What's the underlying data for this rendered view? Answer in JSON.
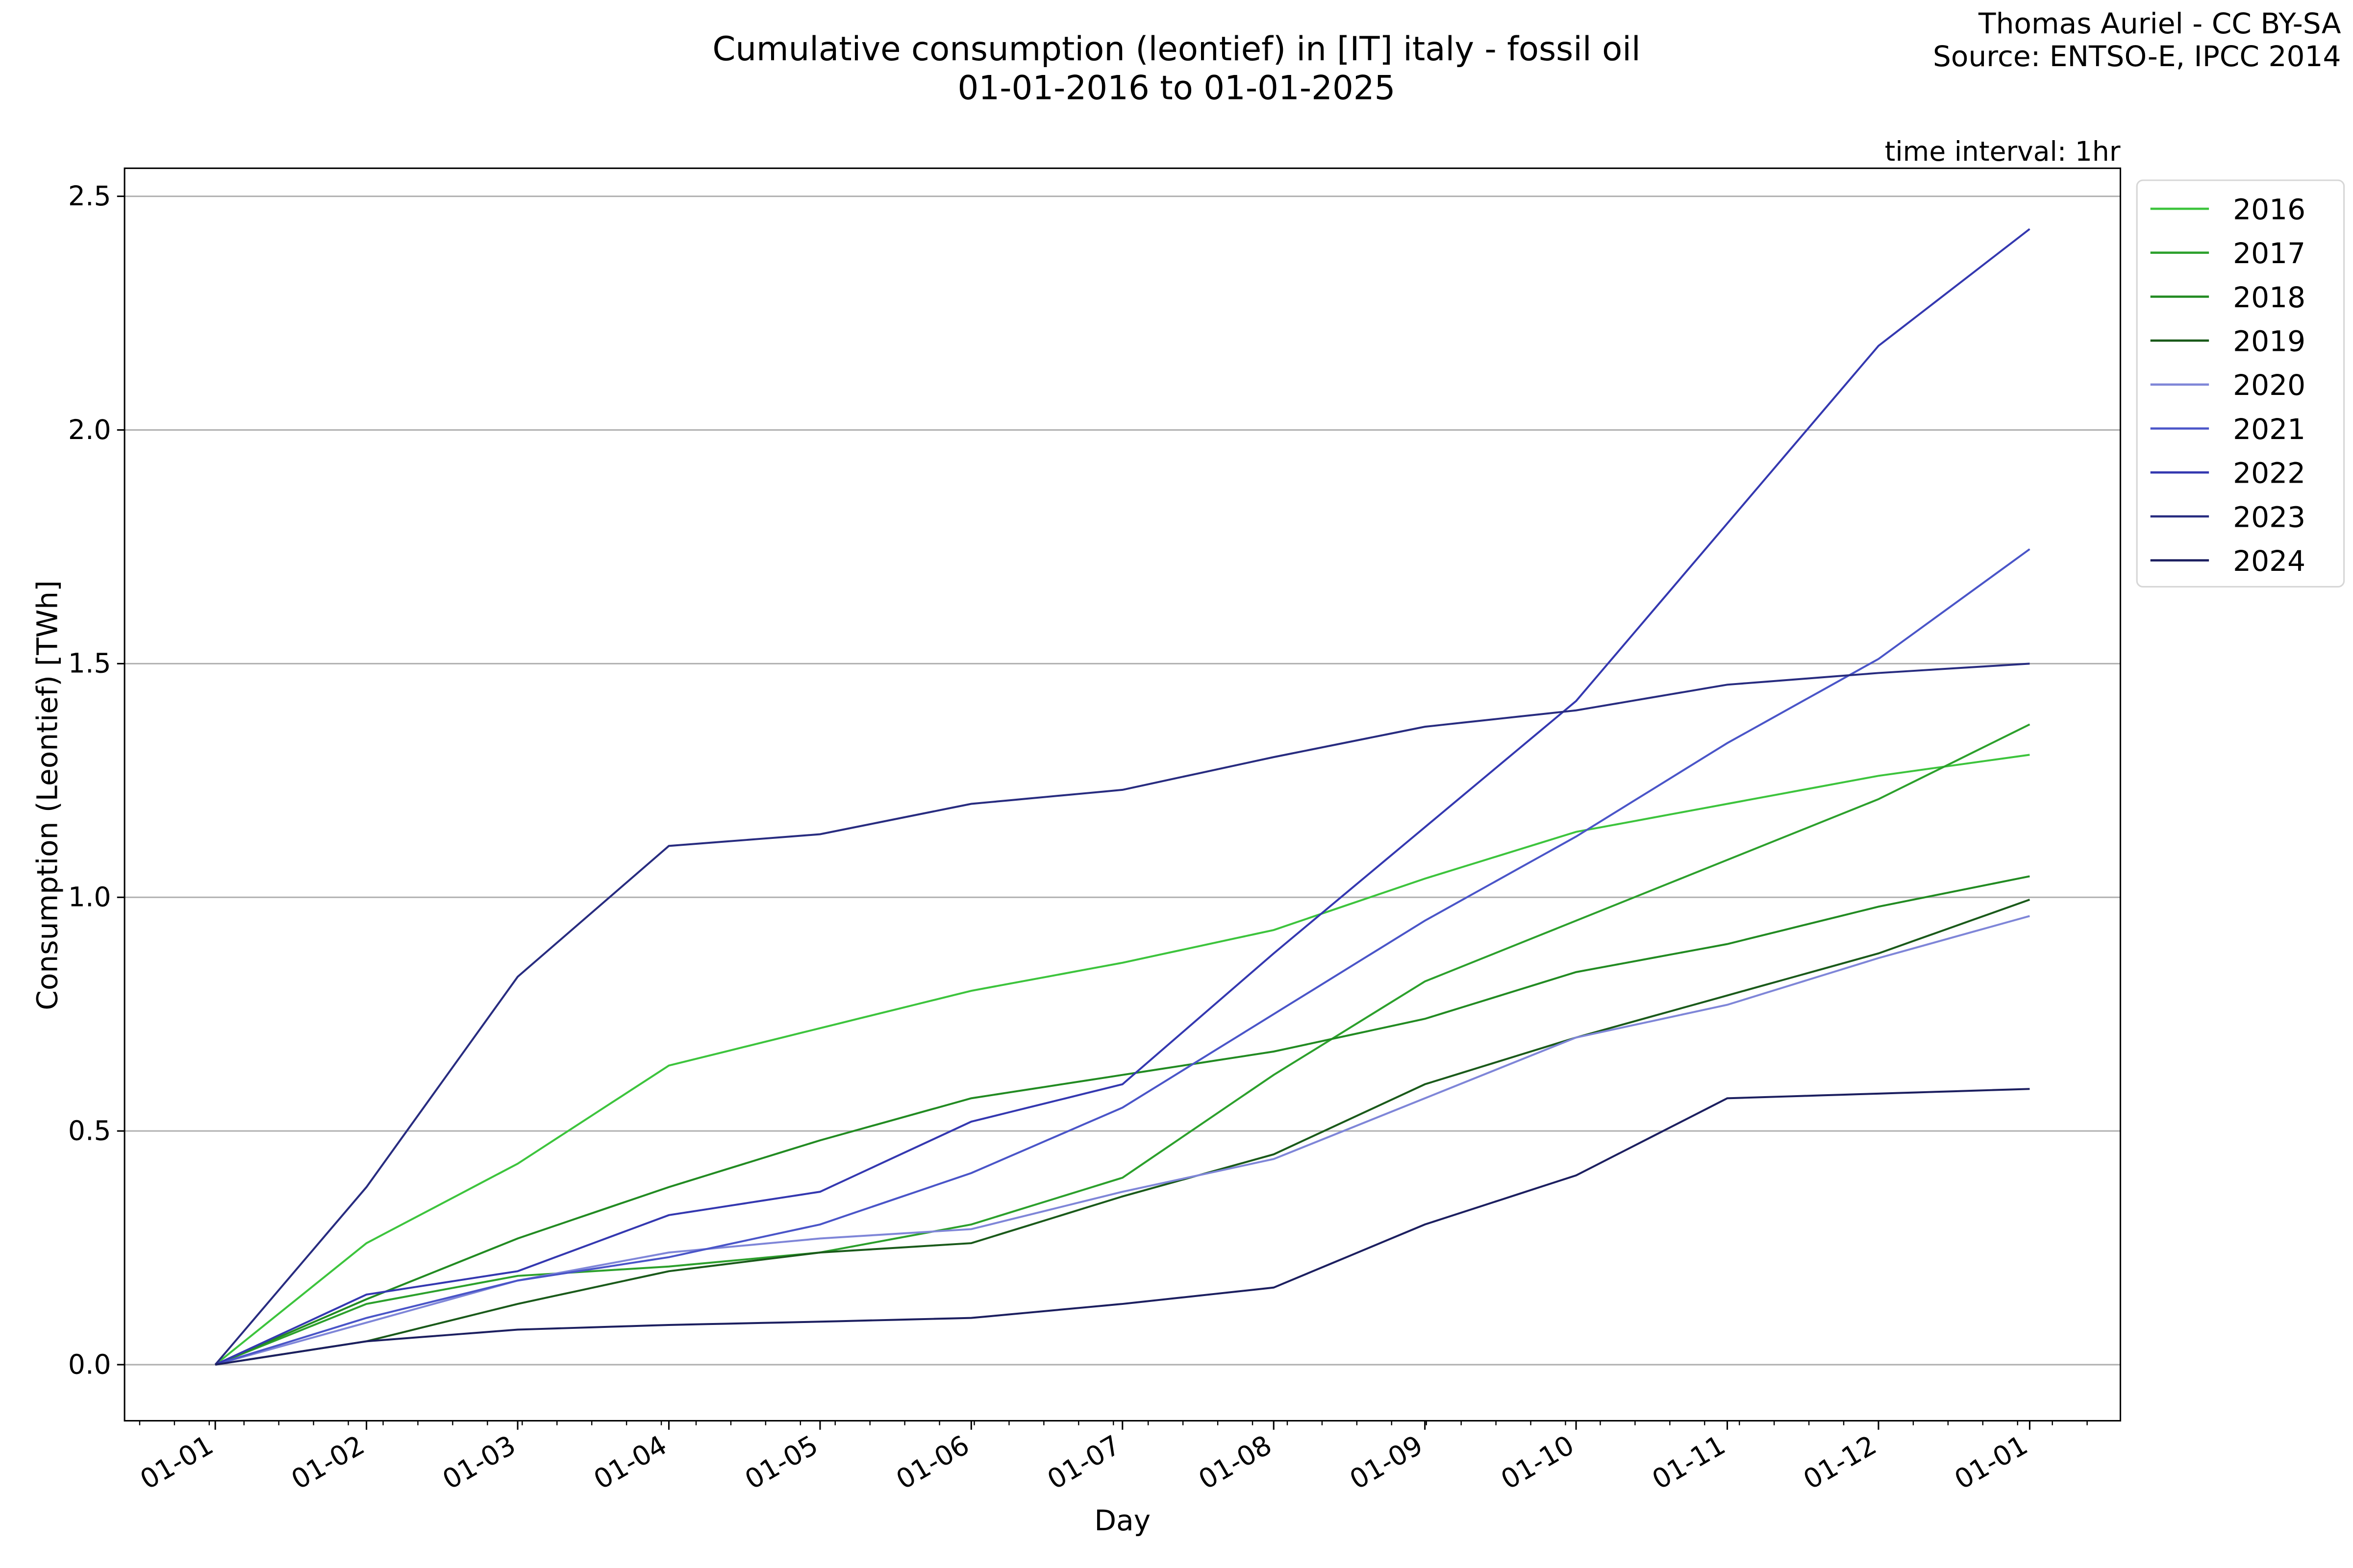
{
  "header": {
    "title_line1": "Cumulative consumption (leontief) in [IT] italy - fossil oil",
    "title_line2": "01-01-2016 to 01-01-2025",
    "credit_line1": "Thomas Auriel - CC BY-SA",
    "credit_line2": "Source: ENTSO-E, IPCC 2014",
    "interval": "time interval: 1hr"
  },
  "chart_data": {
    "type": "line",
    "title": "Cumulative consumption (leontief) in [IT] italy - fossil oil",
    "subtitle": "01-01-2016 to 01-01-2025",
    "xlabel": "Day",
    "ylabel": "Consumption (Leontief) [TWh]",
    "x_ticks": [
      "01-01",
      "01-02",
      "01-03",
      "01-04",
      "01-05",
      "01-06",
      "01-07",
      "01-08",
      "01-09",
      "01-10",
      "01-11",
      "01-12",
      "01-01"
    ],
    "x": [
      0,
      1,
      2,
      3,
      4,
      5,
      6,
      7,
      8,
      9,
      10,
      11,
      12
    ],
    "xlim": [
      -0.6,
      12.6
    ],
    "y_ticks": [
      "0.0",
      "0.5",
      "1.0",
      "1.5",
      "2.0",
      "2.5"
    ],
    "ylim": [
      -0.12,
      2.56
    ],
    "grid": "horizontal",
    "legend_position": "outside-top-right",
    "series": [
      {
        "name": "2016",
        "color": "#3dc43d",
        "values": [
          0,
          0.26,
          0.43,
          0.64,
          0.72,
          0.8,
          0.86,
          0.93,
          1.04,
          1.14,
          1.2,
          1.26,
          1.305
        ]
      },
      {
        "name": "2017",
        "color": "#2ca02c",
        "values": [
          0,
          0.13,
          0.19,
          0.21,
          0.24,
          0.3,
          0.4,
          0.62,
          0.82,
          0.95,
          1.08,
          1.21,
          1.37
        ]
      },
      {
        "name": "2018",
        "color": "#228b22",
        "values": [
          0,
          0.14,
          0.27,
          0.38,
          0.48,
          0.57,
          0.62,
          0.67,
          0.74,
          0.84,
          0.9,
          0.98,
          1.045
        ]
      },
      {
        "name": "2019",
        "color": "#1a5a1a",
        "values": [
          0,
          0.05,
          0.13,
          0.2,
          0.24,
          0.26,
          0.36,
          0.45,
          0.6,
          0.7,
          0.79,
          0.88,
          0.995
        ]
      },
      {
        "name": "2020",
        "color": "#7f86d8",
        "values": [
          0,
          0.09,
          0.18,
          0.24,
          0.27,
          0.29,
          0.37,
          0.44,
          0.57,
          0.7,
          0.77,
          0.87,
          0.96
        ]
      },
      {
        "name": "2021",
        "color": "#4a55c8",
        "values": [
          0,
          0.1,
          0.18,
          0.23,
          0.3,
          0.41,
          0.55,
          0.75,
          0.95,
          1.13,
          1.33,
          1.51,
          1.745
        ]
      },
      {
        "name": "2022",
        "color": "#3438b0",
        "values": [
          0,
          0.15,
          0.2,
          0.32,
          0.37,
          0.52,
          0.6,
          0.88,
          1.15,
          1.42,
          1.8,
          2.18,
          2.43
        ]
      },
      {
        "name": "2023",
        "color": "#282c80",
        "values": [
          0,
          0.38,
          0.83,
          1.11,
          1.135,
          1.2,
          1.23,
          1.3,
          1.365,
          1.4,
          1.455,
          1.48,
          1.5
        ]
      },
      {
        "name": "2024",
        "color": "#1c1f60",
        "values": [
          0,
          0.05,
          0.075,
          0.085,
          0.092,
          0.1,
          0.13,
          0.165,
          0.3,
          0.405,
          0.57,
          0.58,
          0.59
        ]
      }
    ]
  }
}
